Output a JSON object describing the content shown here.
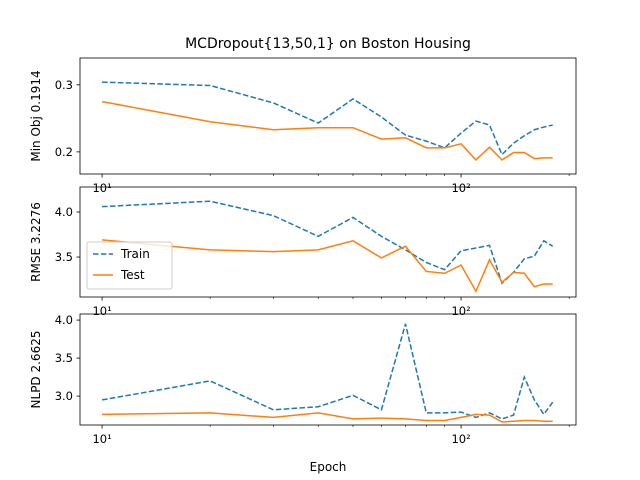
{
  "chart_data": [
    {
      "type": "line",
      "title": "MCDropout{13,50,1} on Boston Housing",
      "ylabel": "Min Obj 0.1914",
      "x": [
        10,
        20,
        30,
        40,
        50,
        60,
        70,
        80,
        90,
        100,
        110,
        120,
        130,
        140,
        150,
        160,
        170,
        180
      ],
      "series": [
        {
          "name": "Train",
          "color": "#1f77b4",
          "linestyle": "dashed",
          "values": [
            0.304,
            0.299,
            0.273,
            0.243,
            0.279,
            0.252,
            0.225,
            0.216,
            0.206,
            0.228,
            0.246,
            0.24,
            0.196,
            0.213,
            0.224,
            0.233,
            0.237,
            0.24
          ]
        },
        {
          "name": "Test",
          "color": "#ff7f0e",
          "linestyle": "solid",
          "values": [
            0.275,
            0.245,
            0.233,
            0.236,
            0.236,
            0.219,
            0.221,
            0.206,
            0.206,
            0.212,
            0.188,
            0.207,
            0.188,
            0.199,
            0.199,
            0.19,
            0.191,
            0.191
          ]
        }
      ],
      "xscale": "log",
      "xlim": [
        8.68,
        209
      ],
      "xticks": [
        {
          "value": 10,
          "label": "10¹"
        },
        {
          "value": 100,
          "label": "10²"
        }
      ],
      "xminorticks": [
        20,
        30,
        40,
        50,
        60,
        70,
        80,
        90,
        200
      ],
      "ylim": [
        0.167,
        0.34
      ],
      "yticks": [
        0.2,
        0.3
      ]
    },
    {
      "type": "line",
      "ylabel": "RMSE 3.2276",
      "x": [
        10,
        20,
        30,
        40,
        50,
        60,
        70,
        80,
        90,
        100,
        110,
        120,
        130,
        140,
        150,
        160,
        170,
        180
      ],
      "series": [
        {
          "name": "Train",
          "color": "#1f77b4",
          "linestyle": "dashed",
          "values": [
            4.06,
            4.12,
            3.96,
            3.73,
            3.94,
            3.73,
            3.58,
            3.44,
            3.36,
            3.57,
            3.6,
            3.63,
            3.21,
            3.33,
            3.48,
            3.51,
            3.68,
            3.62
          ]
        },
        {
          "name": "Test",
          "color": "#ff7f0e",
          "linestyle": "solid",
          "values": [
            3.69,
            3.58,
            3.56,
            3.58,
            3.68,
            3.49,
            3.62,
            3.34,
            3.32,
            3.41,
            3.12,
            3.47,
            3.22,
            3.33,
            3.32,
            3.17,
            3.2,
            3.2
          ]
        }
      ],
      "legend": "center left",
      "xscale": "log",
      "xlim": [
        8.68,
        209
      ],
      "xticks": [
        {
          "value": 10,
          "label": "10¹"
        },
        {
          "value": 100,
          "label": "10²"
        }
      ],
      "xminorticks": [
        20,
        30,
        40,
        50,
        60,
        70,
        80,
        90,
        200
      ],
      "ylim": [
        3.056,
        4.278
      ],
      "yticks": [
        {
          "value": 3.5,
          "label": "3.5"
        },
        {
          "value": 4,
          "label": "4.0"
        }
      ]
    },
    {
      "type": "line",
      "ylabel": "NLPD 2.6625",
      "xlabel": "Epoch",
      "x": [
        10,
        20,
        30,
        40,
        50,
        60,
        70,
        80,
        90,
        100,
        110,
        120,
        130,
        140,
        150,
        160,
        170,
        180
      ],
      "series": [
        {
          "name": "Train",
          "color": "#1f77b4",
          "linestyle": "dashed",
          "values": [
            2.95,
            3.2,
            2.82,
            2.86,
            3.01,
            2.82,
            3.95,
            2.78,
            2.78,
            2.79,
            2.72,
            2.78,
            2.7,
            2.75,
            3.25,
            2.95,
            2.76,
            2.92
          ]
        },
        {
          "name": "Test",
          "color": "#ff7f0e",
          "linestyle": "solid",
          "values": [
            2.76,
            2.78,
            2.72,
            2.78,
            2.7,
            2.71,
            2.7,
            2.68,
            2.68,
            2.72,
            2.76,
            2.75,
            2.66,
            2.67,
            2.68,
            2.68,
            2.67,
            2.67
          ]
        }
      ],
      "xscale": "log",
      "xlim": [
        8.68,
        209
      ],
      "xticks": [
        {
          "value": 10,
          "label": "10¹"
        },
        {
          "value": 100,
          "label": "10²"
        }
      ],
      "xminorticks": [
        20,
        30,
        40,
        50,
        60,
        70,
        80,
        90,
        200
      ],
      "ylim": [
        2.62,
        4.08
      ],
      "yticks": [
        {
          "value": 3,
          "label": "3.0"
        },
        {
          "value": 3.5,
          "label": "3.5"
        },
        {
          "value": 4,
          "label": "4.0"
        }
      ]
    }
  ]
}
